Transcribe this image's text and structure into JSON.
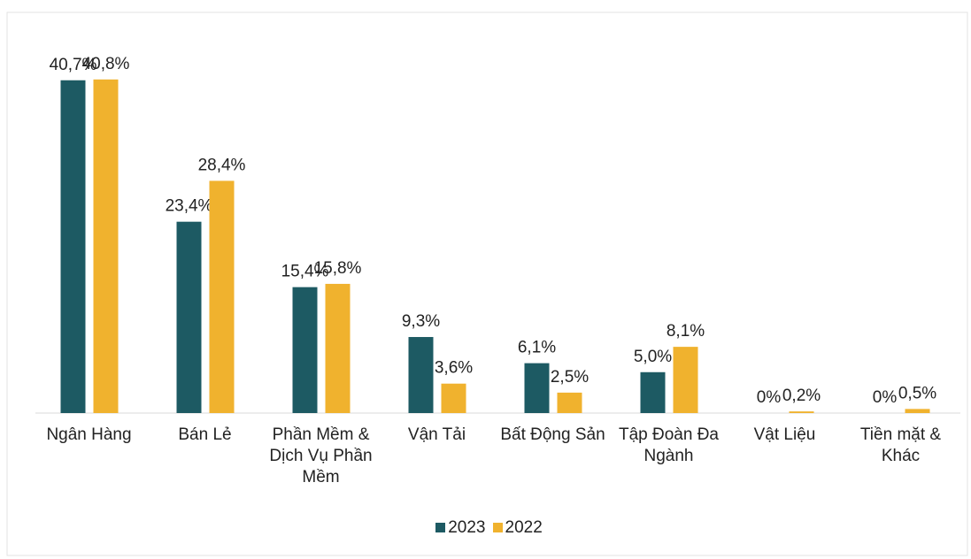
{
  "chart_data": {
    "type": "bar",
    "categories": [
      "Ngân Hàng",
      "Bán Lẻ",
      "Phần Mềm & Dịch Vụ Phần Mềm",
      "Vận Tải",
      "Bất Động Sản",
      "Tập Đoàn Đa Ngành",
      "Vật Liệu",
      "Tiền mặt & Khác"
    ],
    "series": [
      {
        "name": "2023",
        "color": "#1d5a63",
        "values": [
          40.7,
          23.4,
          15.4,
          9.3,
          6.1,
          5.0,
          0,
          0
        ],
        "value_labels": [
          "40,7%",
          "23,4%",
          "15,4%",
          "9,3%",
          "6,1%",
          "5,0%",
          "0%",
          "0%"
        ]
      },
      {
        "name": "2022",
        "color": "#f0b22e",
        "values": [
          40.8,
          28.4,
          15.8,
          3.6,
          2.5,
          8.1,
          0.2,
          0.5
        ],
        "value_labels": [
          "40,8%",
          "28,4%",
          "15,8%",
          "3,6%",
          "2,5%",
          "8,1%",
          "0,2%",
          "0,5%"
        ]
      }
    ],
    "ylim": [
      0,
      45
    ],
    "legend": "bottom"
  }
}
